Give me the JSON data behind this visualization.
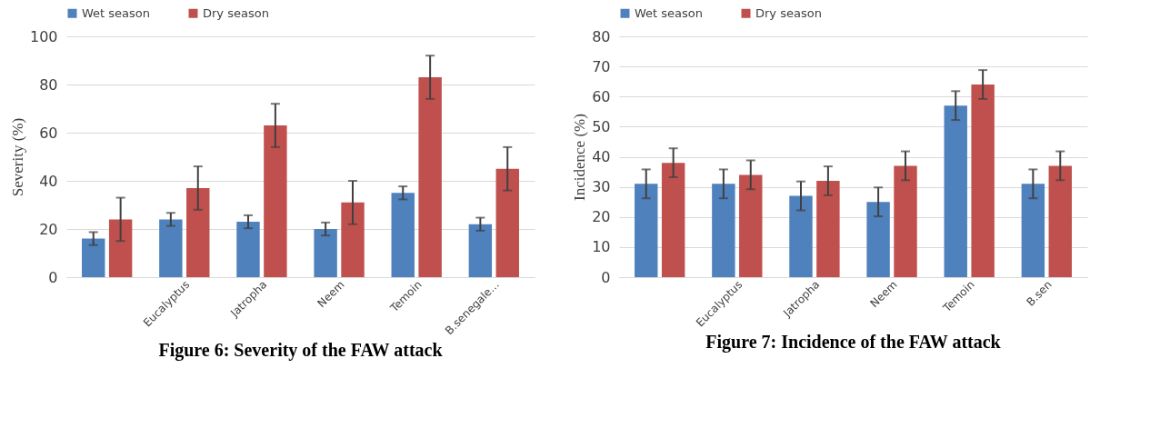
{
  "chart_data": [
    {
      "type": "bar",
      "title": "Figure 6: Severity of the FAW attack",
      "ylabel": "Severity (%)",
      "categories": [
        null,
        "Eucalyptus",
        "Jatropha",
        "Neem",
        "Temoin",
        "B.senegale..."
      ],
      "ylim": [
        0,
        100
      ],
      "yticks": [
        0,
        20,
        40,
        60,
        80,
        100
      ],
      "grid": "y",
      "legend": "top",
      "series": [
        {
          "name": "Wet season",
          "color": "#4f81bd",
          "values": [
            16,
            24,
            23,
            20,
            35,
            22
          ],
          "errors": [
            2.7,
            2.7,
            2.7,
            2.7,
            2.7,
            2.7
          ]
        },
        {
          "name": "Dry season",
          "color": "#c0504d",
          "values": [
            24,
            37,
            63,
            31,
            83,
            45
          ],
          "errors": [
            9,
            9,
            9,
            9,
            9,
            9
          ]
        }
      ]
    },
    {
      "type": "bar",
      "title": "Figure 7: Incidence of the FAW attack",
      "ylabel": "Incidence (%)",
      "categories": [
        null,
        "Eucalyptus",
        "Jatropha",
        "Neem",
        "Temoin",
        "B.sen"
      ],
      "ylim": [
        0,
        80
      ],
      "yticks": [
        0,
        10,
        20,
        30,
        40,
        50,
        60,
        70,
        80
      ],
      "grid": "y",
      "legend": "top",
      "series": [
        {
          "name": "Wet season",
          "color": "#4f81bd",
          "values": [
            31,
            31,
            27,
            25,
            57,
            31
          ],
          "errors": [
            4.8,
            4.8,
            4.8,
            4.8,
            4.8,
            4.8
          ]
        },
        {
          "name": "Dry season",
          "color": "#c0504d",
          "values": [
            38,
            34,
            32,
            37,
            64,
            37
          ],
          "errors": [
            4.8,
            4.8,
            4.8,
            4.8,
            4.8,
            4.8
          ]
        }
      ]
    }
  ]
}
